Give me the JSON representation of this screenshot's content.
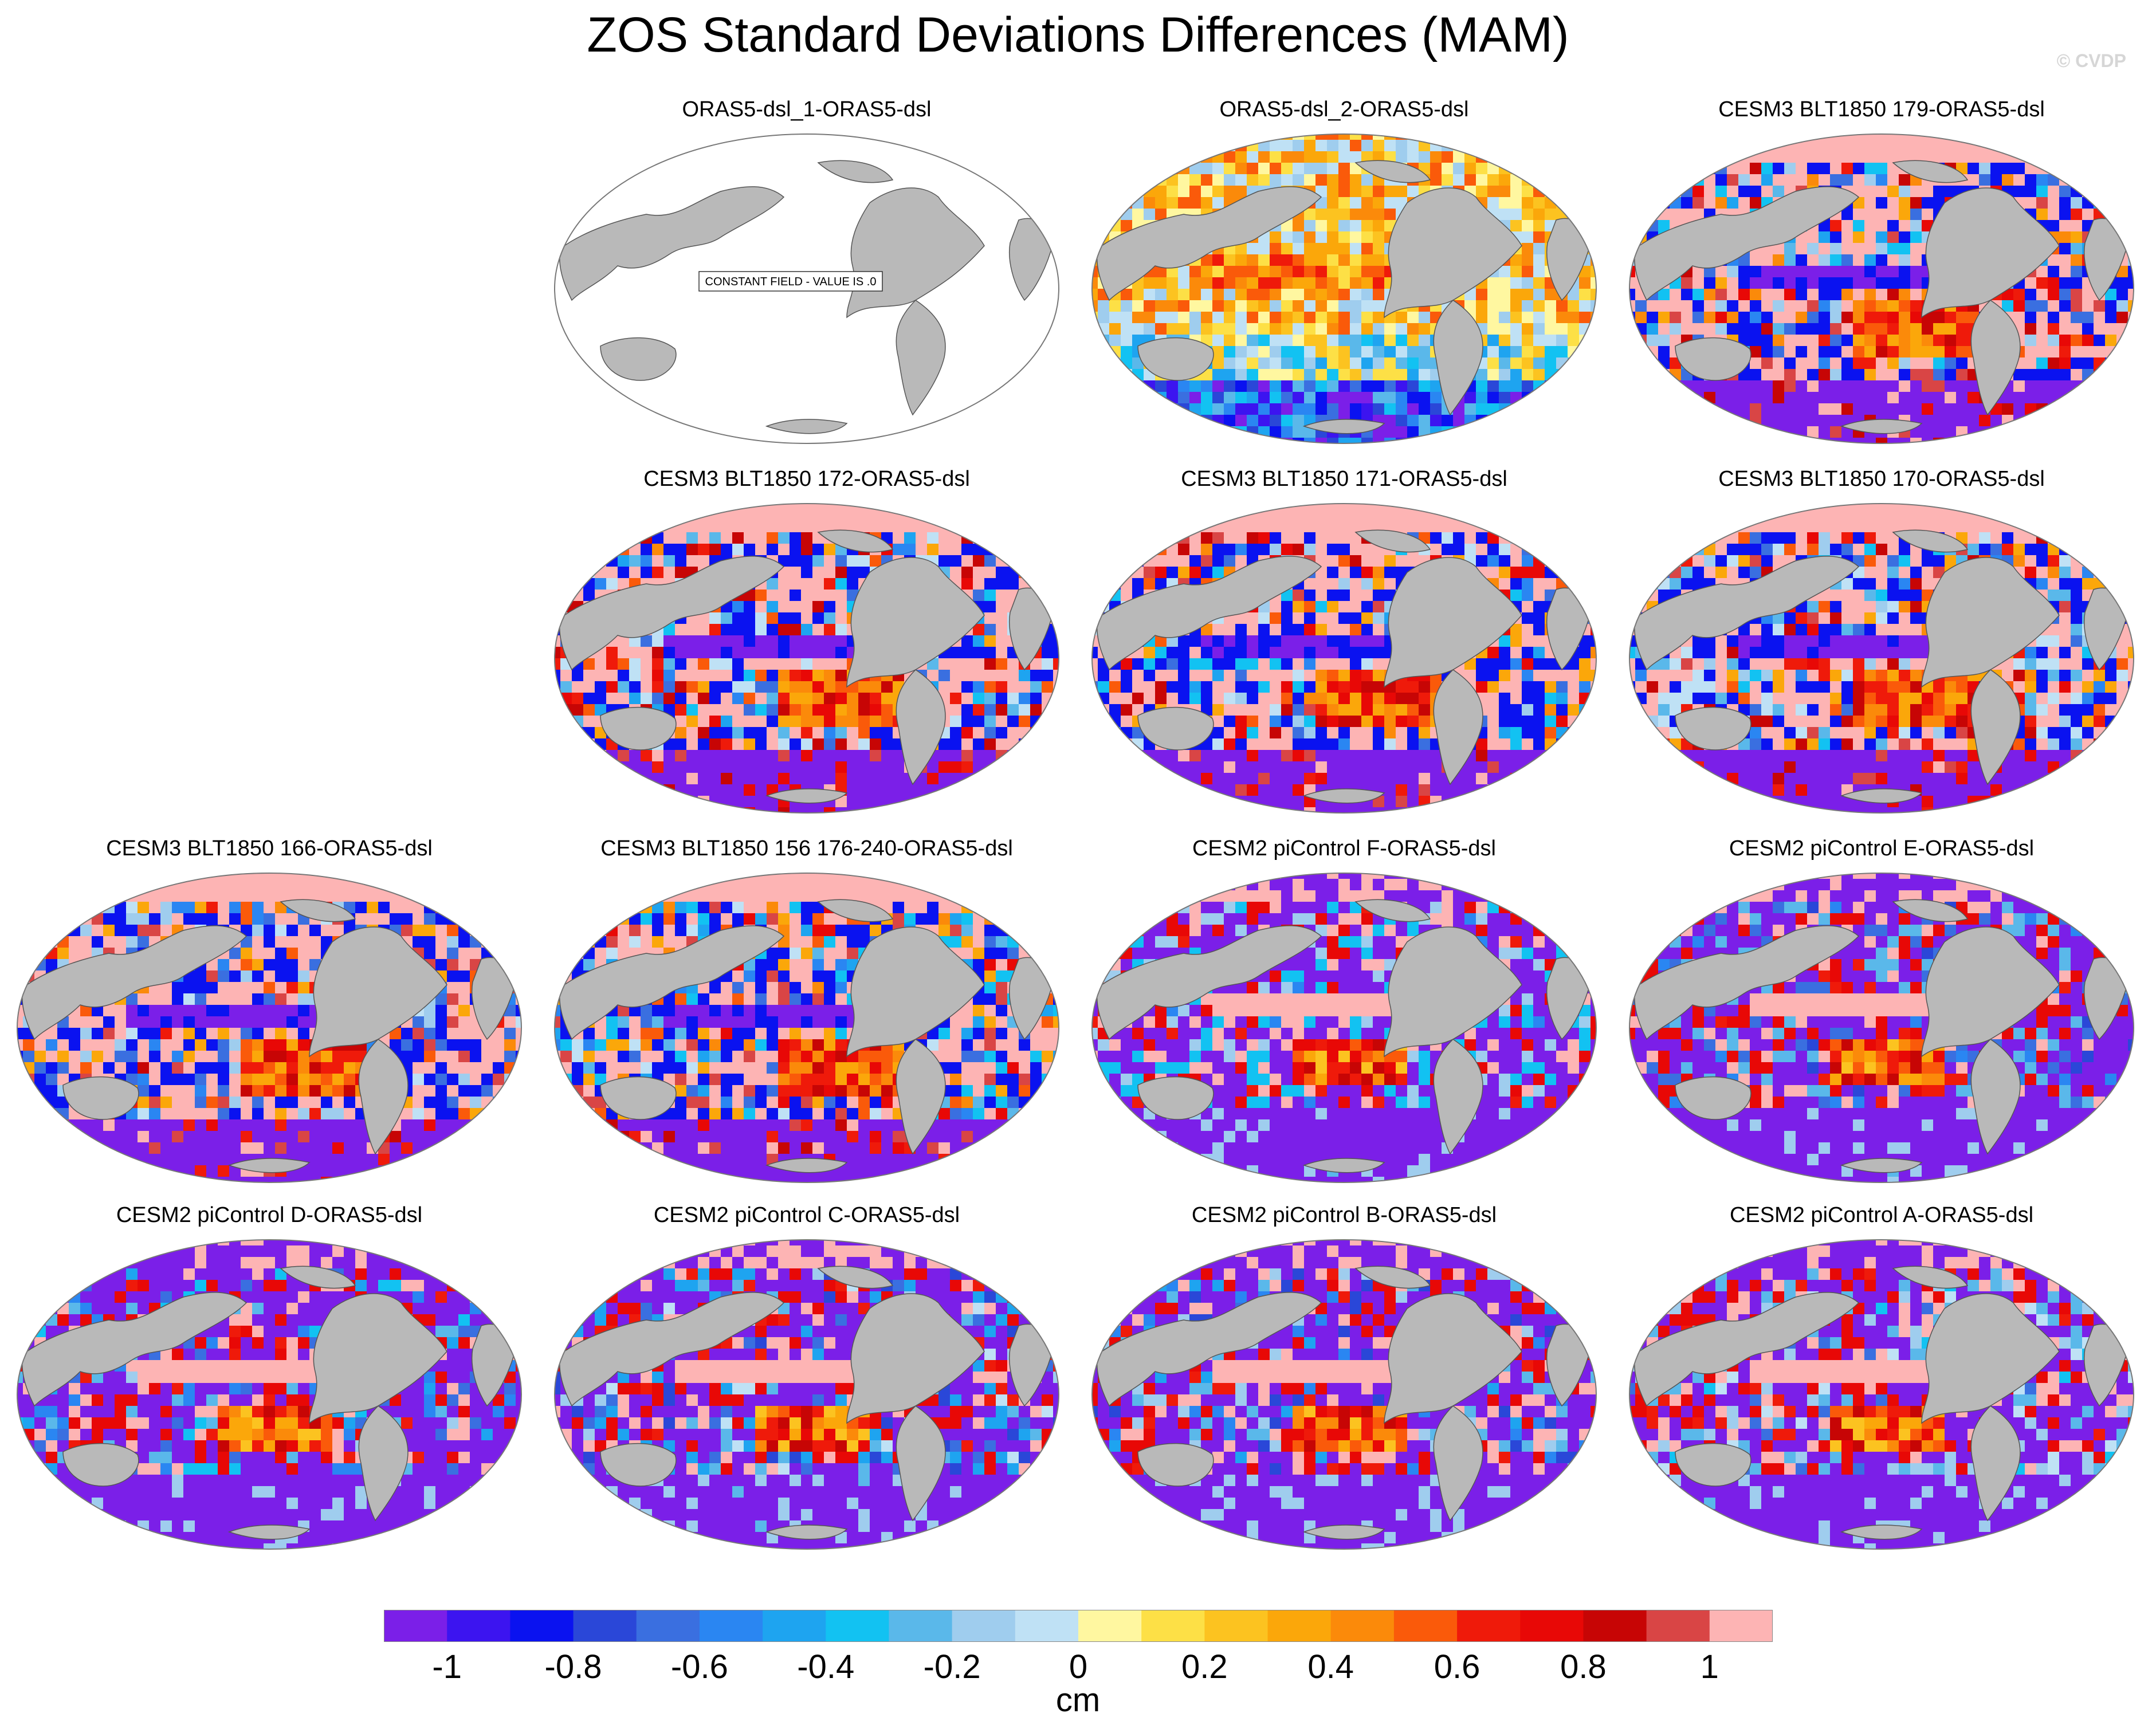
{
  "figure": {
    "title": "ZOS Standard Deviations Differences (MAM)",
    "credit": "© CVDP",
    "units": "cm"
  },
  "colors": {
    "land": "#b9b9b9",
    "coast": "#555555",
    "frame": "#777777",
    "ocean_blank": "#ffffff"
  },
  "colorbar": {
    "colors": [
      "#7b1fe8",
      "#3c14f0",
      "#0a12f0",
      "#2a47d8",
      "#3a6fe0",
      "#2a86f2",
      "#1ea4f0",
      "#12c2f2",
      "#5ab8ea",
      "#9fcdee",
      "#bfe1f5",
      "#fff7a0",
      "#fde046",
      "#fcc320",
      "#fba70a",
      "#fb8a0a",
      "#fa5a0a",
      "#ef1a0a",
      "#e80806",
      "#c70505",
      "#d94545",
      "#fdb4b4"
    ],
    "ticks": [
      "-1",
      "-0.8",
      "-0.6",
      "-0.4",
      "-0.2",
      "0",
      "0.2",
      "0.4",
      "0.6",
      "0.8",
      "1"
    ],
    "tick_values": [
      -1,
      -0.8,
      -0.6,
      -0.4,
      -0.2,
      0,
      0.2,
      0.4,
      0.6,
      0.8,
      1
    ]
  },
  "panels": [
    {
      "title": "ORAS5-dsl_1-ORAS5-dsl",
      "row": 0,
      "col": 1,
      "style": "blank",
      "note": "CONSTANT FIELD - VALUE IS .0"
    },
    {
      "title": "ORAS5-dsl_2-ORAS5-dsl",
      "row": 0,
      "col": 2,
      "style": "warm"
    },
    {
      "title": "CESM3 BLT1850 179-ORAS5-dsl",
      "row": 0,
      "col": 3,
      "style": "cesm3"
    },
    {
      "title": "CESM3 BLT1850 172-ORAS5-dsl",
      "row": 1,
      "col": 1,
      "style": "cesm3"
    },
    {
      "title": "CESM3 BLT1850 171-ORAS5-dsl",
      "row": 1,
      "col": 2,
      "style": "cesm3"
    },
    {
      "title": "CESM3 BLT1850 170-ORAS5-dsl",
      "row": 1,
      "col": 3,
      "style": "cesm3"
    },
    {
      "title": "CESM3 BLT1850 166-ORAS5-dsl",
      "row": 2,
      "col": 0,
      "style": "cesm3"
    },
    {
      "title": "CESM3 BLT1850 156 176-240-ORAS5-dsl",
      "row": 2,
      "col": 1,
      "style": "cesm3"
    },
    {
      "title": "CESM2 piControl F-ORAS5-dsl",
      "row": 2,
      "col": 2,
      "style": "cesm2"
    },
    {
      "title": "CESM2 piControl E-ORAS5-dsl",
      "row": 2,
      "col": 3,
      "style": "cesm2"
    },
    {
      "title": "CESM2 piControl D-ORAS5-dsl",
      "row": 3,
      "col": 0,
      "style": "cesm2"
    },
    {
      "title": "CESM2 piControl C-ORAS5-dsl",
      "row": 3,
      "col": 1,
      "style": "cesm2"
    },
    {
      "title": "CESM2 piControl B-ORAS5-dsl",
      "row": 3,
      "col": 2,
      "style": "cesm2"
    },
    {
      "title": "CESM2 piControl A-ORAS5-dsl",
      "row": 3,
      "col": 3,
      "style": "cesm2"
    }
  ]
}
